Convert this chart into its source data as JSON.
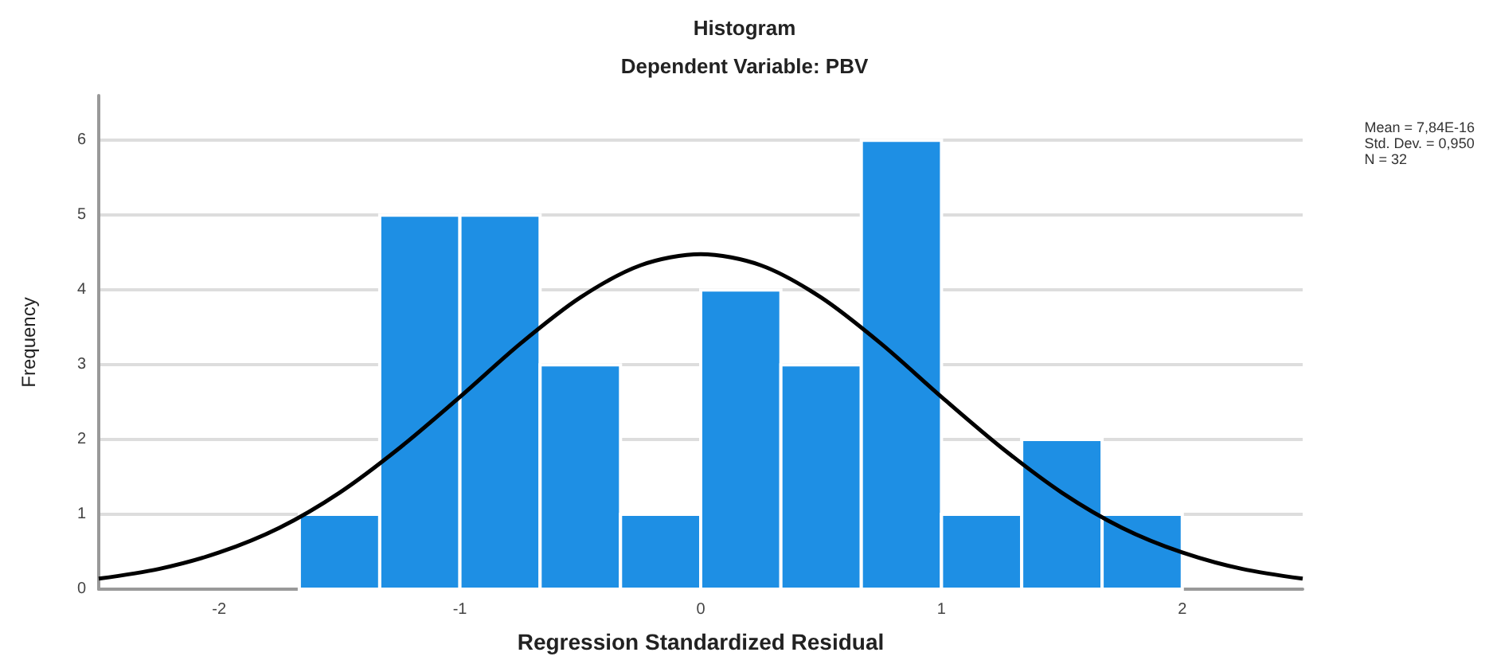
{
  "chart_data": {
    "type": "histogram",
    "title": "Histogram",
    "subtitle": "Dependent Variable: PBV",
    "xlabel": "Regression Standardized Residual",
    "ylabel": "Frequency",
    "series": [
      {
        "color": "#1e8fe4",
        "bins": [
          -1.667,
          -1.333,
          -1,
          -0.667,
          -0.333,
          0,
          0.333,
          0.667,
          1,
          1.333,
          1.667,
          2
        ],
        "values": [
          1,
          5,
          5,
          3,
          1,
          4,
          3,
          6,
          1,
          2,
          1
        ]
      },
      {
        "type": "line",
        "color": "#000000",
        "x": [
          -2.5,
          -2.25,
          -2,
          -1.75,
          -1.5,
          -1.25,
          -1,
          -0.75,
          -0.5,
          -0.25,
          0,
          0.25,
          0.5,
          0.75,
          1,
          1.25,
          1.5,
          1.75,
          2,
          2.25,
          2.5
        ],
        "values": [
          0.14,
          0.27,
          0.49,
          0.82,
          1.29,
          1.89,
          2.57,
          3.28,
          3.9,
          4.33,
          4.48,
          4.33,
          3.9,
          3.28,
          2.57,
          1.89,
          1.29,
          0.82,
          0.49,
          0.27,
          0.14
        ]
      }
    ],
    "xlim": [
      -2.5,
      2.5
    ],
    "xticks": [
      -2,
      -1,
      0,
      1,
      2
    ],
    "ylim": [
      0,
      6.6
    ],
    "yticks": [
      0,
      1,
      2,
      3,
      4,
      5,
      6
    ],
    "grid": "y",
    "annotations": [
      "Mean = 7,84E-16",
      "Std. Dev. = 0,950",
      "N = 32"
    ]
  }
}
